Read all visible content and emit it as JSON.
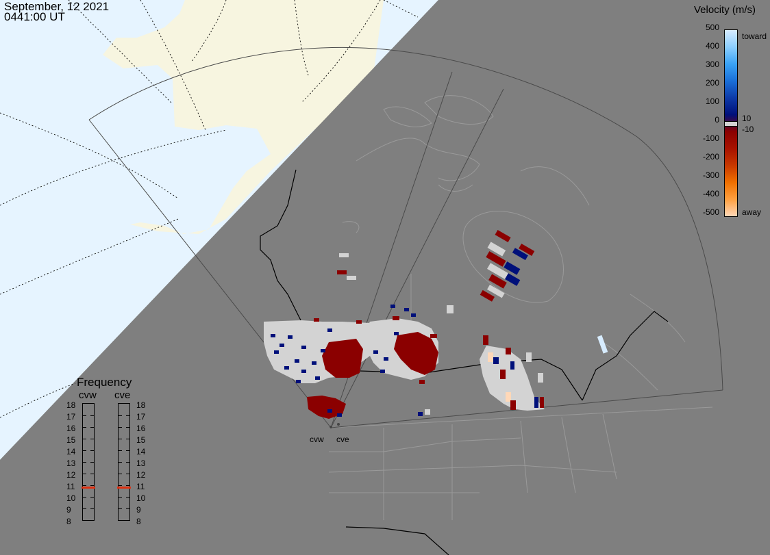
{
  "header": {
    "date": "September, 12 2021",
    "time": "0441:00 UT"
  },
  "velocity_scale": {
    "title": "Velocity (m/s)",
    "ticks": [
      "500",
      "400",
      "300",
      "200",
      "100",
      "0",
      "-100",
      "-200",
      "-300",
      "-400",
      "-500"
    ],
    "toward_label": "toward",
    "away_label": "away",
    "threshold_pos": "10",
    "threshold_neg": "-10",
    "colors": [
      "#d7ecff",
      "#8ccfff",
      "#3aa3f5",
      "#1a6fd8",
      "#0d3aa8",
      "#00107a",
      "#8b0000",
      "#a81200",
      "#c83800",
      "#f07000",
      "#ffa040",
      "#ffd8b8"
    ]
  },
  "frequency": {
    "title": "Frequency",
    "radars": [
      {
        "name": "cvw",
        "current_mhz": 10.8
      },
      {
        "name": "cve",
        "current_mhz": 10.8
      }
    ],
    "ticks": [
      "18",
      "17",
      "16",
      "15",
      "14",
      "13",
      "12",
      "11",
      "10",
      "9",
      "8"
    ],
    "indicator_color": "#e03010"
  },
  "radar_sites": [
    "cvw",
    "cve"
  ],
  "colors": {
    "night_shade": "#7f7f7f",
    "ocean_day": "#e6f4ff",
    "land_day": "#f7f5e0",
    "no_data_scatter": "#d3d3d3"
  }
}
